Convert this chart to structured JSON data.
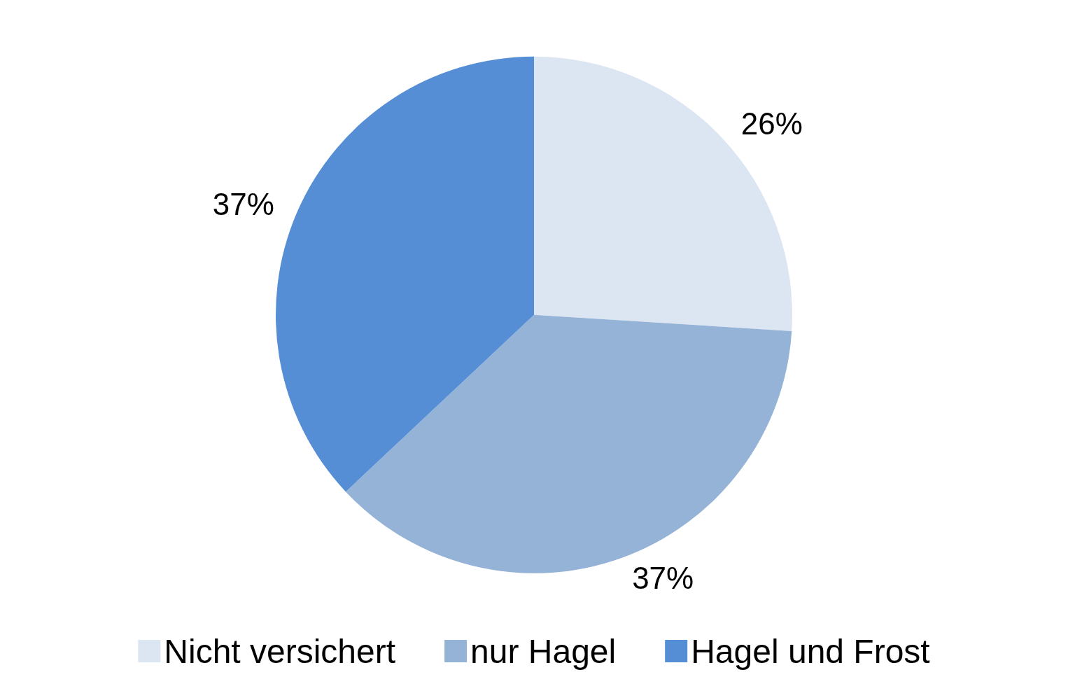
{
  "chart_data": {
    "type": "pie",
    "categories": [
      "Nicht versichert",
      "nur Hagel",
      "Hagel und Frost"
    ],
    "values": [
      26,
      37,
      37
    ],
    "value_labels": [
      "26%",
      "37%",
      "37%"
    ],
    "colors": [
      "#dce6f2",
      "#95b3d7",
      "#558ed5"
    ],
    "legend": "bottom"
  }
}
